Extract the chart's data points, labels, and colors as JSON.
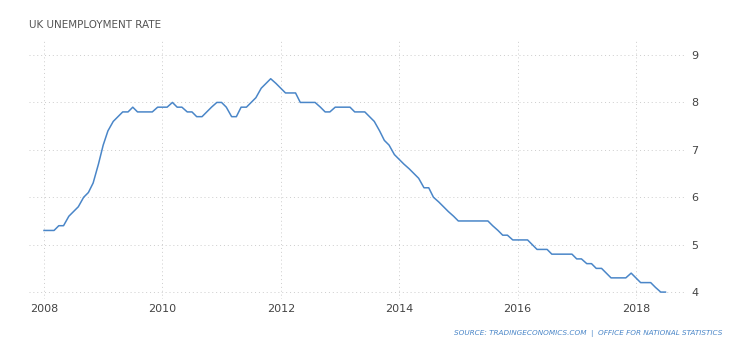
{
  "title": "UK UNEMPLOYMENT RATE",
  "source_text": "SOURCE: TRADINGECONOMICS.COM  |  OFFICE FOR NATIONAL STATISTICS",
  "line_color": "#4a86c8",
  "background_color": "#ffffff",
  "grid_color": "#cccccc",
  "ylim": [
    3.85,
    9.3
  ],
  "yticks": [
    4,
    5,
    6,
    7,
    8,
    9
  ],
  "xlabel_years": [
    "2008",
    "2010",
    "2012",
    "2014",
    "2016",
    "2018"
  ],
  "xlim": [
    2007.75,
    2018.85
  ],
  "data": [
    [
      2008.0,
      5.3
    ],
    [
      2008.08,
      5.3
    ],
    [
      2008.17,
      5.3
    ],
    [
      2008.25,
      5.4
    ],
    [
      2008.33,
      5.4
    ],
    [
      2008.42,
      5.6
    ],
    [
      2008.5,
      5.7
    ],
    [
      2008.58,
      5.8
    ],
    [
      2008.67,
      6.0
    ],
    [
      2008.75,
      6.1
    ],
    [
      2008.83,
      6.3
    ],
    [
      2008.92,
      6.7
    ],
    [
      2009.0,
      7.1
    ],
    [
      2009.08,
      7.4
    ],
    [
      2009.17,
      7.6
    ],
    [
      2009.25,
      7.7
    ],
    [
      2009.33,
      7.8
    ],
    [
      2009.42,
      7.8
    ],
    [
      2009.5,
      7.9
    ],
    [
      2009.58,
      7.8
    ],
    [
      2009.67,
      7.8
    ],
    [
      2009.75,
      7.8
    ],
    [
      2009.83,
      7.8
    ],
    [
      2009.92,
      7.9
    ],
    [
      2010.0,
      7.9
    ],
    [
      2010.08,
      7.9
    ],
    [
      2010.17,
      8.0
    ],
    [
      2010.25,
      7.9
    ],
    [
      2010.33,
      7.9
    ],
    [
      2010.42,
      7.8
    ],
    [
      2010.5,
      7.8
    ],
    [
      2010.58,
      7.7
    ],
    [
      2010.67,
      7.7
    ],
    [
      2010.75,
      7.8
    ],
    [
      2010.83,
      7.9
    ],
    [
      2010.92,
      8.0
    ],
    [
      2011.0,
      8.0
    ],
    [
      2011.08,
      7.9
    ],
    [
      2011.17,
      7.7
    ],
    [
      2011.25,
      7.7
    ],
    [
      2011.33,
      7.9
    ],
    [
      2011.42,
      7.9
    ],
    [
      2011.5,
      8.0
    ],
    [
      2011.58,
      8.1
    ],
    [
      2011.67,
      8.3
    ],
    [
      2011.75,
      8.4
    ],
    [
      2011.83,
      8.5
    ],
    [
      2011.92,
      8.4
    ],
    [
      2012.0,
      8.3
    ],
    [
      2012.08,
      8.2
    ],
    [
      2012.17,
      8.2
    ],
    [
      2012.25,
      8.2
    ],
    [
      2012.33,
      8.0
    ],
    [
      2012.42,
      8.0
    ],
    [
      2012.5,
      8.0
    ],
    [
      2012.58,
      8.0
    ],
    [
      2012.67,
      7.9
    ],
    [
      2012.75,
      7.8
    ],
    [
      2012.83,
      7.8
    ],
    [
      2012.92,
      7.9
    ],
    [
      2013.0,
      7.9
    ],
    [
      2013.08,
      7.9
    ],
    [
      2013.17,
      7.9
    ],
    [
      2013.25,
      7.8
    ],
    [
      2013.33,
      7.8
    ],
    [
      2013.42,
      7.8
    ],
    [
      2013.5,
      7.7
    ],
    [
      2013.58,
      7.6
    ],
    [
      2013.67,
      7.4
    ],
    [
      2013.75,
      7.2
    ],
    [
      2013.83,
      7.1
    ],
    [
      2013.92,
      6.9
    ],
    [
      2014.0,
      6.8
    ],
    [
      2014.08,
      6.7
    ],
    [
      2014.17,
      6.6
    ],
    [
      2014.25,
      6.5
    ],
    [
      2014.33,
      6.4
    ],
    [
      2014.42,
      6.2
    ],
    [
      2014.5,
      6.2
    ],
    [
      2014.58,
      6.0
    ],
    [
      2014.67,
      5.9
    ],
    [
      2014.75,
      5.8
    ],
    [
      2014.83,
      5.7
    ],
    [
      2014.92,
      5.6
    ],
    [
      2015.0,
      5.5
    ],
    [
      2015.08,
      5.5
    ],
    [
      2015.17,
      5.5
    ],
    [
      2015.25,
      5.5
    ],
    [
      2015.33,
      5.5
    ],
    [
      2015.42,
      5.5
    ],
    [
      2015.5,
      5.5
    ],
    [
      2015.58,
      5.4
    ],
    [
      2015.67,
      5.3
    ],
    [
      2015.75,
      5.2
    ],
    [
      2015.83,
      5.2
    ],
    [
      2015.92,
      5.1
    ],
    [
      2016.0,
      5.1
    ],
    [
      2016.08,
      5.1
    ],
    [
      2016.17,
      5.1
    ],
    [
      2016.25,
      5.0
    ],
    [
      2016.33,
      4.9
    ],
    [
      2016.42,
      4.9
    ],
    [
      2016.5,
      4.9
    ],
    [
      2016.58,
      4.8
    ],
    [
      2016.67,
      4.8
    ],
    [
      2016.75,
      4.8
    ],
    [
      2016.83,
      4.8
    ],
    [
      2016.92,
      4.8
    ],
    [
      2017.0,
      4.7
    ],
    [
      2017.08,
      4.7
    ],
    [
      2017.17,
      4.6
    ],
    [
      2017.25,
      4.6
    ],
    [
      2017.33,
      4.5
    ],
    [
      2017.42,
      4.5
    ],
    [
      2017.5,
      4.4
    ],
    [
      2017.58,
      4.3
    ],
    [
      2017.67,
      4.3
    ],
    [
      2017.75,
      4.3
    ],
    [
      2017.83,
      4.3
    ],
    [
      2017.92,
      4.4
    ],
    [
      2018.0,
      4.3
    ],
    [
      2018.08,
      4.2
    ],
    [
      2018.17,
      4.2
    ],
    [
      2018.25,
      4.2
    ],
    [
      2018.33,
      4.1
    ],
    [
      2018.42,
      4.0
    ],
    [
      2018.5,
      4.0
    ]
  ]
}
